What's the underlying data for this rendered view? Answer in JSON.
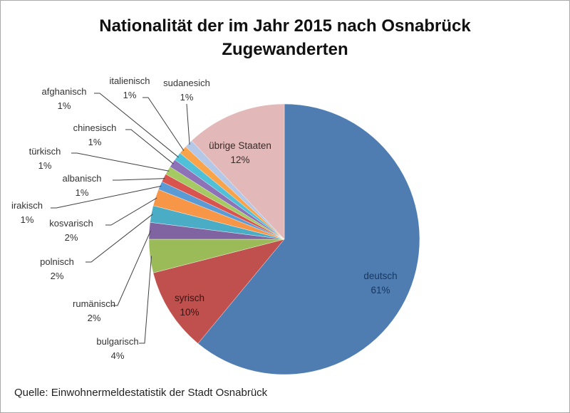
{
  "chart_data": {
    "type": "pie",
    "title": "Nationalität der im Jahr 2015 nach Osnabrück Zugewanderten",
    "title_lines": [
      "Nationalität der im Jahr 2015 nach Osnabrück",
      "Zugewanderten"
    ],
    "unit": "%",
    "start": "12 o'clock, clockwise",
    "slices": [
      {
        "label": "deutsch",
        "value": 61,
        "pct_label": "61%",
        "color": "#4f7db1",
        "label_pos": "inside"
      },
      {
        "label": "syrisch",
        "value": 10,
        "pct_label": "10%",
        "color": "#c0504d",
        "label_pos": "inside"
      },
      {
        "label": "bulgarisch",
        "value": 4,
        "pct_label": "4%",
        "color": "#9bbb59",
        "label_pos": "outside"
      },
      {
        "label": "rumänisch",
        "value": 2,
        "pct_label": "2%",
        "color": "#8064a2",
        "label_pos": "outside"
      },
      {
        "label": "polnisch",
        "value": 2,
        "pct_label": "2%",
        "color": "#4bacc6",
        "label_pos": "outside"
      },
      {
        "label": "kosvarisch",
        "value": 2,
        "pct_label": "2%",
        "color": "#f79646",
        "label_pos": "outside"
      },
      {
        "label": "irakisch",
        "value": 1,
        "pct_label": "1%",
        "color": "#5b9bd5",
        "label_pos": "outside"
      },
      {
        "label": "albanisch",
        "value": 1,
        "pct_label": "1%",
        "color": "#d9534f",
        "label_pos": "outside"
      },
      {
        "label": "türkisch",
        "value": 1,
        "pct_label": "1%",
        "color": "#a5c963",
        "label_pos": "outside"
      },
      {
        "label": "chinesisch",
        "value": 1,
        "pct_label": "1%",
        "color": "#8e72b8",
        "label_pos": "outside"
      },
      {
        "label": "afghanisch",
        "value": 1,
        "pct_label": "1%",
        "color": "#4fc0d8",
        "label_pos": "outside"
      },
      {
        "label": "italienisch",
        "value": 1,
        "pct_label": "1%",
        "color": "#f9a44a",
        "label_pos": "outside"
      },
      {
        "label": "sudanesich",
        "value": 1,
        "pct_label": "1%",
        "color": "#b4c7e7",
        "label_pos": "outside"
      },
      {
        "label": "übrige Staaten",
        "value": 12,
        "pct_label": "12%",
        "color": "#e2b8b8",
        "label_pos": "inside"
      }
    ],
    "legend": "none (data labels with leader lines)"
  },
  "source": "Quelle: Einwohnermeldestatistik der Stadt Osnabrück"
}
